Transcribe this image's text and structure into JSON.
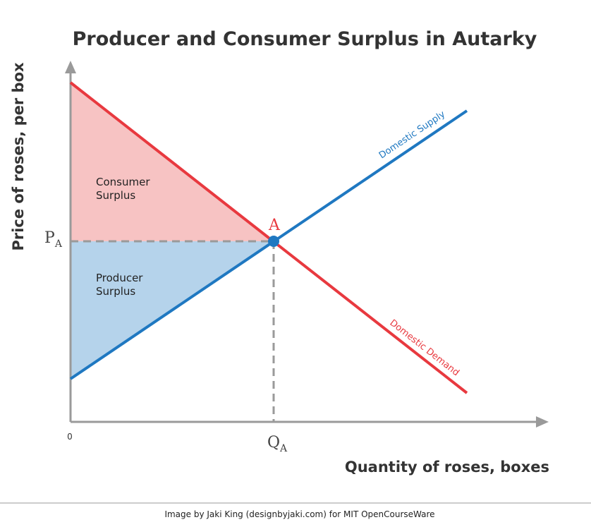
{
  "title": "Producer and Consumer Surplus in Autarky",
  "axes": {
    "y_label": "Price of roses, per box",
    "x_label": "Quantity of roses, boxes",
    "origin_label": "0"
  },
  "equilibrium": {
    "point_label": "A",
    "price_label_main": "P",
    "price_label_sub": "A",
    "quantity_label_main": "Q",
    "quantity_label_sub": "A"
  },
  "regions": {
    "consumer_surplus": [
      "Consumer",
      "Surplus"
    ],
    "producer_surplus": [
      "Producer",
      "Surplus"
    ]
  },
  "curves": {
    "supply": "Domestic Supply",
    "demand": "Domestic Demand"
  },
  "credit": "Image by Jaki King (designbyjaki.com) for MIT OpenCourseWare",
  "colors": {
    "demand": "#e8393f",
    "supply": "#1f78c1",
    "consumer_fill": "#f7c3c3",
    "producer_fill": "#b5d3eb",
    "axis": "#9a9a9a",
    "dashed": "#9a9a9a",
    "point_label": "#e8393f"
  }
}
